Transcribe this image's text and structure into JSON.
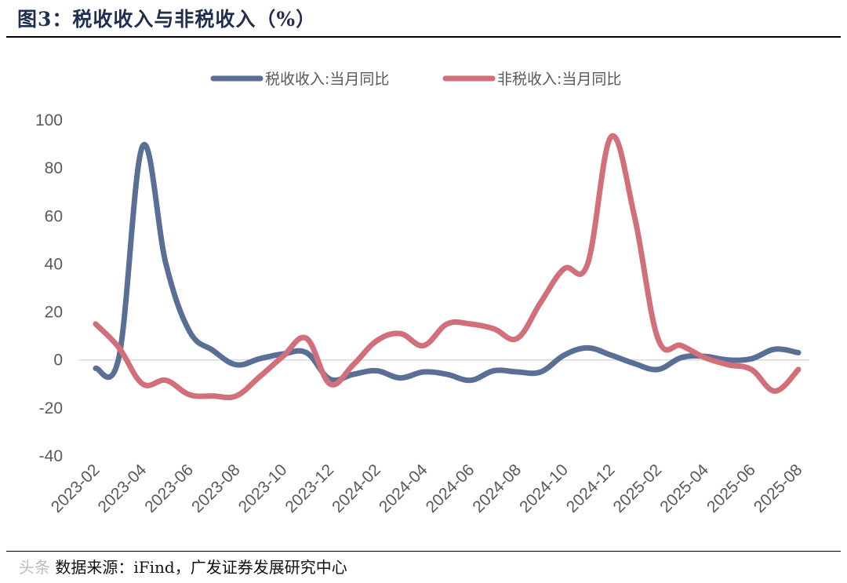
{
  "figure": {
    "title": "图3：税收收入与非税收入（%）",
    "source_prefix": "数据来源：",
    "source_text": "iFind，广发证券发展研究中心",
    "watermark": "头条"
  },
  "chart_data": {
    "type": "line",
    "title": "税收收入与非税收入（%）",
    "xlabel": "",
    "ylabel": "",
    "ylim": [
      -40,
      100
    ],
    "yticks": [
      -40,
      -20,
      0,
      20,
      40,
      60,
      80,
      100
    ],
    "legend_position": "top",
    "grid": false,
    "x": [
      "2023-02",
      "2023-03",
      "2023-04",
      "2023-05",
      "2023-06",
      "2023-07",
      "2023-08",
      "2023-09",
      "2023-10",
      "2023-11",
      "2023-12",
      "2024-01",
      "2024-02",
      "2024-03",
      "2024-04",
      "2024-05",
      "2024-06",
      "2024-07",
      "2024-08",
      "2024-09",
      "2024-10",
      "2024-11",
      "2024-12",
      "2025-01",
      "2025-02",
      "2025-03",
      "2025-04",
      "2025-05",
      "2025-06",
      "2025-07",
      "2025-08"
    ],
    "xtick_labels": [
      "2023-02",
      "2023-04",
      "2023-06",
      "2023-08",
      "2023-10",
      "2023-12",
      "2024-02",
      "2024-04",
      "2024-06",
      "2024-08",
      "2024-10",
      "2024-12",
      "2025-02",
      "2025-04",
      "2025-06",
      "2025-08"
    ],
    "series": [
      {
        "name": "税收收入:当月同比",
        "color": "#5a6f96",
        "values": [
          -3.5,
          1.5,
          89,
          40,
          12,
          4,
          -2,
          0.5,
          2.5,
          3,
          -8,
          -6,
          -4.5,
          -7.5,
          -5,
          -6,
          -8.5,
          -4.5,
          -5,
          -5,
          2,
          5,
          2,
          -1.5,
          -4,
          1,
          1.5,
          0,
          0.5,
          4.5,
          3
        ]
      },
      {
        "name": "非税收入:当月同比",
        "color": "#d16f7b",
        "values": [
          15,
          5,
          -10,
          -8.5,
          -14.5,
          -15,
          -15,
          -7,
          1.5,
          9,
          -10,
          -2,
          8,
          11,
          6,
          15,
          15,
          13,
          9,
          24,
          38,
          40,
          93,
          60,
          9,
          6,
          1,
          -2,
          -4,
          -13,
          -4
        ]
      }
    ]
  }
}
